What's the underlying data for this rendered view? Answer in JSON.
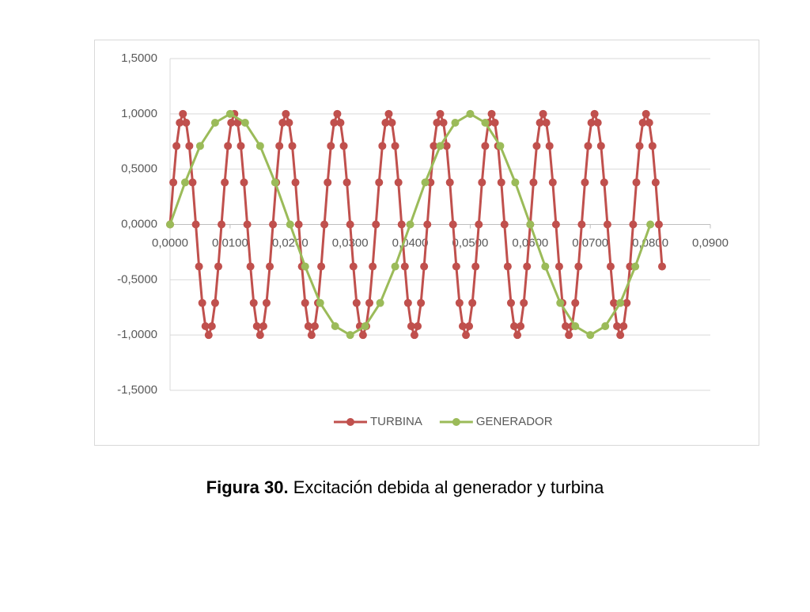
{
  "chart_data": {
    "type": "line",
    "xlim": [
      0,
      0.09
    ],
    "xticks": [
      {
        "value": 0,
        "label": "0,0000"
      },
      {
        "value": 0.01,
        "label": "0,0100"
      },
      {
        "value": 0.02,
        "label": "0,0200"
      },
      {
        "value": 0.03,
        "label": "0,0300"
      },
      {
        "value": 0.04,
        "label": "0,0400"
      },
      {
        "value": 0.05,
        "label": "0,0500"
      },
      {
        "value": 0.06,
        "label": "0,0600"
      },
      {
        "value": 0.07,
        "label": "0,0700"
      },
      {
        "value": 0.08,
        "label": "0,0800"
      },
      {
        "value": 0.09,
        "label": "0,0900"
      }
    ],
    "ylim": [
      -1.5,
      1.5
    ],
    "yticks": [
      {
        "value": -1.5,
        "label": "-1,5000"
      },
      {
        "value": -1,
        "label": "-1,0000"
      },
      {
        "value": -0.5,
        "label": "-0,5000"
      },
      {
        "value": 0,
        "label": "0,0000"
      },
      {
        "value": 0.5,
        "label": "0,5000"
      },
      {
        "value": 1,
        "label": "1,0000"
      },
      {
        "value": 1.5,
        "label": "1,5000"
      }
    ],
    "grid": true,
    "legend": "bottom",
    "series": [
      {
        "name": "TURBINA",
        "color": "#c0504d",
        "x": [
          0,
          0.00054,
          0.00107,
          0.00161,
          0.00214,
          0.00268,
          0.00321,
          0.00375,
          0.00429,
          0.00482,
          0.00536,
          0.00589,
          0.00643,
          0.00696,
          0.0075,
          0.00804,
          0.00857,
          0.00911,
          0.00964,
          0.01018,
          0.01071,
          0.01125,
          0.01179,
          0.01232,
          0.01286,
          0.01339,
          0.01393,
          0.01446,
          0.015,
          0.01554,
          0.01607,
          0.01661,
          0.01714,
          0.01768,
          0.01821,
          0.01875,
          0.01929,
          0.01982,
          0.02036,
          0.02089,
          0.02143,
          0.02196,
          0.0225,
          0.02304,
          0.02357,
          0.02411,
          0.02464,
          0.02518,
          0.02571,
          0.02625,
          0.02679,
          0.02732,
          0.02786,
          0.02839,
          0.02893,
          0.02946,
          0.03,
          0.03054,
          0.03107,
          0.03161,
          0.03214,
          0.03268,
          0.03321,
          0.03375,
          0.03429,
          0.03482,
          0.03536,
          0.03589,
          0.03643,
          0.03696,
          0.0375,
          0.03804,
          0.03857,
          0.03911,
          0.03964,
          0.04018,
          0.04071,
          0.04125,
          0.04179,
          0.04232,
          0.04286,
          0.04339,
          0.04393,
          0.04446,
          0.045,
          0.04554,
          0.04607,
          0.04661,
          0.04714,
          0.04768,
          0.04821,
          0.04875,
          0.04929,
          0.04982,
          0.05036,
          0.05089,
          0.05143,
          0.05196,
          0.0525,
          0.05304,
          0.05357,
          0.05411,
          0.05464,
          0.05518,
          0.05571,
          0.05625,
          0.05679,
          0.05732,
          0.05786,
          0.05839,
          0.05893,
          0.05946,
          0.06,
          0.06054,
          0.06107,
          0.06161,
          0.06214,
          0.06268,
          0.06321,
          0.06375,
          0.06429,
          0.06482,
          0.06536,
          0.06589,
          0.06643,
          0.06696,
          0.0675,
          0.06804,
          0.06857,
          0.06911,
          0.06964,
          0.07018,
          0.07071,
          0.07125,
          0.07179,
          0.07232,
          0.07286,
          0.07339,
          0.07393,
          0.07446,
          0.075,
          0.07554,
          0.07607,
          0.07661,
          0.07714,
          0.07768,
          0.07821,
          0.07875,
          0.07929,
          0.07982,
          0.08036,
          0.08089,
          0.08143,
          0.08196
        ],
        "values": [
          0,
          0.38,
          0.71,
          0.92,
          1,
          0.92,
          0.71,
          0.38,
          0,
          -0.38,
          -0.71,
          -0.92,
          -1,
          -0.92,
          -0.71,
          -0.38,
          0,
          0.38,
          0.71,
          0.92,
          1,
          0.92,
          0.71,
          0.38,
          0,
          -0.38,
          -0.71,
          -0.92,
          -1,
          -0.92,
          -0.71,
          -0.38,
          0,
          0.38,
          0.71,
          0.92,
          1,
          0.92,
          0.71,
          0.38,
          0,
          -0.38,
          -0.71,
          -0.92,
          -1,
          -0.92,
          -0.71,
          -0.38,
          0,
          0.38,
          0.71,
          0.92,
          1,
          0.92,
          0.71,
          0.38,
          0,
          -0.38,
          -0.71,
          -0.92,
          -1,
          -0.92,
          -0.71,
          -0.38,
          0,
          0.38,
          0.71,
          0.92,
          1,
          0.92,
          0.71,
          0.38,
          0,
          -0.38,
          -0.71,
          -0.92,
          -1,
          -0.92,
          -0.71,
          -0.38,
          0,
          0.38,
          0.71,
          0.92,
          1,
          0.92,
          0.71,
          0.38,
          0,
          -0.38,
          -0.71,
          -0.92,
          -1,
          -0.92,
          -0.71,
          -0.38,
          0,
          0.38,
          0.71,
          0.92,
          1,
          0.92,
          0.71,
          0.38,
          0,
          -0.38,
          -0.71,
          -0.92,
          -1,
          -0.92,
          -0.71,
          -0.38,
          0,
          0.38,
          0.71,
          0.92,
          1,
          0.92,
          0.71,
          0.38,
          0,
          -0.38,
          -0.71,
          -0.92,
          -1,
          -0.92,
          -0.71,
          -0.38,
          0,
          0.38,
          0.71,
          0.92,
          1,
          0.92,
          0.71,
          0.38,
          0,
          -0.38,
          -0.71,
          -0.92,
          -1,
          -0.92,
          -0.71,
          -0.38,
          0,
          0.38,
          0.71,
          0.92,
          1,
          0.92,
          0.71,
          0.38,
          0,
          -0.38
        ]
      },
      {
        "name": "GENERADOR",
        "color": "#9bbb59",
        "x": [
          0,
          0.0025,
          0.005,
          0.0075,
          0.01,
          0.0125,
          0.015,
          0.0175,
          0.02,
          0.0225,
          0.025,
          0.0275,
          0.03,
          0.0325,
          0.035,
          0.0375,
          0.04,
          0.0425,
          0.045,
          0.0475,
          0.05,
          0.0525,
          0.055,
          0.0575,
          0.06,
          0.0625,
          0.065,
          0.0675,
          0.07,
          0.0725,
          0.075,
          0.0775,
          0.08
        ],
        "values": [
          0,
          0.38,
          0.71,
          0.92,
          1,
          0.92,
          0.71,
          0.38,
          0,
          -0.38,
          -0.71,
          -0.92,
          -1,
          -0.92,
          -0.71,
          -0.38,
          0,
          0.38,
          0.71,
          0.92,
          1,
          0.92,
          0.71,
          0.38,
          0,
          -0.38,
          -0.71,
          -0.92,
          -1,
          -0.92,
          -0.71,
          -0.38,
          0
        ]
      }
    ]
  },
  "caption_label": "Figura 30.",
  "caption_text": "Excitación debida al generador y turbina"
}
